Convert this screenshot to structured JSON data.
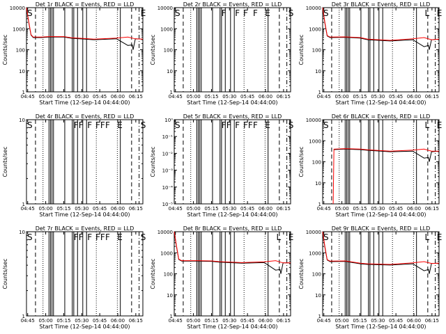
{
  "chart_data": [
    {
      "type": "line",
      "title": "Det 1r BLACK = Events, RED = LLD",
      "ylabel": "Counts/sec",
      "xlabel": "Start Time (12-Sep-14 04:44:00)",
      "x_ticks": [
        "04:45",
        "05:00",
        "05:15",
        "05:30",
        "05:45",
        "06:00",
        "06:15"
      ],
      "y_ticks": [
        "1",
        "10",
        "100",
        "1000",
        "10000"
      ],
      "y_log": true,
      "ylim": [
        1,
        10000
      ],
      "markers": [
        {
          "t": 0,
          "label": "S"
        },
        {
          "t": 151,
          "label": "E"
        }
      ],
      "series": [
        {
          "color": "#000000",
          "points": [
            [
              0,
              10000
            ],
            [
              3,
              2000
            ],
            [
              6,
              500
            ],
            [
              9,
              380
            ],
            [
              20,
              380
            ],
            [
              30,
              400
            ],
            [
              50,
              400
            ],
            [
              60,
              350
            ],
            [
              90,
              300
            ],
            [
              120,
              330
            ],
            [
              135,
              160
            ],
            [
              141,
              170
            ],
            [
              142,
              100
            ],
            [
              145,
              330
            ],
            [
              155,
              320
            ]
          ]
        },
        {
          "color": "#ff0000",
          "points": [
            [
              0,
              10000
            ],
            [
              3,
              2200
            ],
            [
              6,
              520
            ],
            [
              9,
              400
            ],
            [
              20,
              400
            ],
            [
              30,
              420
            ],
            [
              50,
              420
            ],
            [
              60,
              370
            ],
            [
              90,
              320
            ],
            [
              120,
              360
            ],
            [
              135,
              400
            ],
            [
              145,
              330
            ],
            [
              155,
              320
            ]
          ]
        }
      ]
    },
    {
      "type": "line",
      "title": "Det 2r BLACK = Events, RED = LLD",
      "ylabel": "Counts/sec",
      "xlabel": "Start Time (12-Sep-14 04:44:00)",
      "x_ticks": [
        "04:45",
        "05:00",
        "05:15",
        "05:30",
        "05:45",
        "06:00",
        "06:15"
      ],
      "y_ticks": [
        "1",
        "10",
        "100",
        "1000",
        "10000"
      ],
      "y_log": true,
      "ylim": [
        1,
        10000
      ],
      "markers": [
        {
          "t": 0,
          "label": "S"
        },
        {
          "t": 62,
          "label": "F"
        },
        {
          "t": 80,
          "label": "F"
        },
        {
          "t": 91,
          "label": "F"
        },
        {
          "t": 104,
          "label": "F"
        },
        {
          "t": 120,
          "label": "E"
        },
        {
          "t": 151,
          "label": "S"
        }
      ],
      "series": []
    },
    {
      "type": "line",
      "title": "Det 3r BLACK = Events, RED = LLD",
      "ylabel": "Counts/sec",
      "xlabel": "Start Time (12-Sep-14 04:44:00)",
      "x_ticks": [
        "04:45",
        "05:00",
        "05:15",
        "05:30",
        "05:45",
        "06:00",
        "06:15"
      ],
      "y_ticks": [
        "1",
        "10",
        "100",
        "1000",
        "10000"
      ],
      "y_log": true,
      "ylim": [
        1,
        10000
      ],
      "markers": [
        {
          "t": 0,
          "label": "S"
        },
        {
          "t": 135,
          "label": "L"
        },
        {
          "t": 151,
          "label": "E"
        }
      ],
      "series": [
        {
          "color": "#000000",
          "points": [
            [
              0,
              10000
            ],
            [
              3,
              1800
            ],
            [
              6,
              450
            ],
            [
              10,
              380
            ],
            [
              30,
              390
            ],
            [
              50,
              360
            ],
            [
              60,
              300
            ],
            [
              90,
              260
            ],
            [
              120,
              300
            ],
            [
              135,
              140
            ],
            [
              141,
              160
            ],
            [
              142,
              100
            ],
            [
              145,
              300
            ],
            [
              155,
              320
            ]
          ]
        },
        {
          "color": "#ff0000",
          "points": [
            [
              0,
              10000
            ],
            [
              3,
              2000
            ],
            [
              6,
              470
            ],
            [
              10,
              400
            ],
            [
              30,
              410
            ],
            [
              50,
              380
            ],
            [
              60,
              320
            ],
            [
              90,
              280
            ],
            [
              120,
              330
            ],
            [
              135,
              380
            ],
            [
              145,
              300
            ],
            [
              155,
              320
            ]
          ]
        }
      ]
    },
    {
      "type": "line",
      "title": "Det 4r BLACK = Events, RED = LLD",
      "ylabel": "Counts/sec",
      "xlabel": "Start Time (12-Sep-14 04:44:00)",
      "x_ticks": [
        "04:45",
        "05:00",
        "05:15",
        "05:30",
        "05:45",
        "06:00",
        "06:15"
      ],
      "y_ticks": [
        "1",
        "10"
      ],
      "y_log": true,
      "ylim": [
        1,
        10
      ],
      "markers": [
        {
          "t": 0,
          "label": "S"
        },
        {
          "t": 62,
          "label": "FF"
        },
        {
          "t": 80,
          "label": "F"
        },
        {
          "t": 91,
          "label": "FF"
        },
        {
          "t": 104,
          "label": "F"
        },
        {
          "t": 120,
          "label": "E"
        },
        {
          "t": 151,
          "label": "S"
        }
      ],
      "series": []
    },
    {
      "type": "line",
      "title": "Det 5r BLACK = Events, RED = LLD",
      "ylabel": "Counts/sec",
      "xlabel": "Start Time (12-Sep-14 04:44:00)",
      "x_ticks": [
        "04:45",
        "05:00",
        "05:15",
        "05:30",
        "05:45",
        "06:00",
        "06:15"
      ],
      "y_ticks": [
        "10⁻⁵",
        "10⁻⁴",
        "10⁻³",
        "10⁻²",
        "10⁻¹",
        "10⁰"
      ],
      "y_log": true,
      "ylim": [
        1e-05,
        1
      ],
      "markers": [
        {
          "t": 0,
          "label": "S"
        },
        {
          "t": 62,
          "label": "FF"
        },
        {
          "t": 80,
          "label": "F"
        },
        {
          "t": 91,
          "label": "FF"
        },
        {
          "t": 104,
          "label": "F"
        },
        {
          "t": 120,
          "label": "E"
        },
        {
          "t": 151,
          "label": "S"
        }
      ],
      "series": []
    },
    {
      "type": "line",
      "title": "Det 6r BLACK = Events, RED = LLD",
      "ylabel": "Counts/sec",
      "xlabel": "Start Time (12-Sep-14 04:44:00)",
      "x_ticks": [
        "04:45",
        "05:00",
        "05:15",
        "05:30",
        "05:45",
        "06:00",
        "06:15"
      ],
      "y_ticks": [
        "1",
        "10",
        "100",
        "1000",
        "10000"
      ],
      "y_log": true,
      "ylim": [
        1,
        10000
      ],
      "markers": [
        {
          "t": 0,
          "label": "S"
        },
        {
          "t": 135,
          "label": "L"
        },
        {
          "t": 151,
          "label": "E"
        }
      ],
      "series": [
        {
          "color": "#000000",
          "points": [
            [
              15,
              380
            ],
            [
              30,
              400
            ],
            [
              50,
              380
            ],
            [
              60,
              350
            ],
            [
              90,
              300
            ],
            [
              120,
              320
            ],
            [
              135,
              150
            ],
            [
              141,
              160
            ],
            [
              142,
              100
            ],
            [
              145,
              300
            ],
            [
              155,
              320
            ]
          ]
        },
        {
          "color": "#ff0000",
          "points": [
            [
              14,
              1
            ],
            [
              15,
              400
            ],
            [
              30,
              420
            ],
            [
              50,
              400
            ],
            [
              60,
              370
            ],
            [
              90,
              320
            ],
            [
              120,
              360
            ],
            [
              135,
              400
            ],
            [
              145,
              320
            ],
            [
              155,
              320
            ]
          ]
        }
      ]
    },
    {
      "type": "line",
      "title": "Det 7r BLACK = Events, RED = LLD",
      "ylabel": "Counts/sec",
      "xlabel": "Start Time (12-Sep-14 04:44:00)",
      "x_ticks": [
        "04:45",
        "05:00",
        "05:15",
        "05:30",
        "05:45",
        "06:00",
        "06:15"
      ],
      "y_ticks": [
        "1",
        "10"
      ],
      "y_log": true,
      "ylim": [
        1,
        10
      ],
      "markers": [
        {
          "t": 0,
          "label": "S"
        },
        {
          "t": 62,
          "label": "FF"
        },
        {
          "t": 80,
          "label": "F"
        },
        {
          "t": 91,
          "label": "FF"
        },
        {
          "t": 104,
          "label": "F"
        },
        {
          "t": 120,
          "label": "E"
        },
        {
          "t": 151,
          "label": "S"
        }
      ],
      "series": []
    },
    {
      "type": "line",
      "title": "Det 8r BLACK = Events, RED = LLD",
      "ylabel": "Counts/sec",
      "xlabel": "Start Time (12-Sep-14 04:44:00)",
      "x_ticks": [
        "04:45",
        "05:00",
        "05:15",
        "05:30",
        "05:45",
        "06:00",
        "06:15"
      ],
      "y_ticks": [
        "1",
        "10",
        "100",
        "1000",
        "10000"
      ],
      "y_log": true,
      "ylim": [
        1,
        10000
      ],
      "markers": [
        {
          "t": 135,
          "label": "L"
        },
        {
          "t": 151,
          "label": "E"
        }
      ],
      "series": [
        {
          "color": "#000000",
          "points": [
            [
              0,
              10000
            ],
            [
              3,
              2000
            ],
            [
              6,
              480
            ],
            [
              10,
              400
            ],
            [
              30,
              400
            ],
            [
              50,
              390
            ],
            [
              60,
              360
            ],
            [
              90,
              320
            ],
            [
              120,
              340
            ],
            [
              135,
              150
            ],
            [
              141,
              160
            ],
            [
              142,
              100
            ],
            [
              145,
              330
            ],
            [
              155,
              330
            ]
          ]
        },
        {
          "color": "#ff0000",
          "points": [
            [
              0,
              10000
            ],
            [
              3,
              2200
            ],
            [
              6,
              500
            ],
            [
              10,
              420
            ],
            [
              30,
              420
            ],
            [
              50,
              410
            ],
            [
              60,
              380
            ],
            [
              90,
              340
            ],
            [
              120,
              370
            ],
            [
              135,
              420
            ],
            [
              145,
              330
            ],
            [
              155,
              330
            ]
          ]
        }
      ]
    },
    {
      "type": "line",
      "title": "Det 9r BLACK = Events, RED = LLD",
      "ylabel": "Counts/sec",
      "xlabel": "Start Time (12-Sep-14 04:44:00)",
      "x_ticks": [
        "04:45",
        "05:00",
        "05:15",
        "05:30",
        "05:45",
        "06:00",
        "06:15"
      ],
      "y_ticks": [
        "1",
        "10",
        "100",
        "1000",
        "10000"
      ],
      "y_log": true,
      "ylim": [
        1,
        10000
      ],
      "markers": [
        {
          "t": 0,
          "label": "S"
        },
        {
          "t": 135,
          "label": "L"
        },
        {
          "t": 151,
          "label": "E"
        }
      ],
      "series": [
        {
          "color": "#000000",
          "points": [
            [
              0,
              10000
            ],
            [
              3,
              1800
            ],
            [
              6,
              450
            ],
            [
              10,
              380
            ],
            [
              30,
              390
            ],
            [
              50,
              300
            ],
            [
              60,
              280
            ],
            [
              90,
              260
            ],
            [
              120,
              300
            ],
            [
              135,
              140
            ],
            [
              141,
              160
            ],
            [
              142,
              100
            ],
            [
              145,
              310
            ],
            [
              155,
              320
            ]
          ]
        },
        {
          "color": "#ff0000",
          "points": [
            [
              0,
              10000
            ],
            [
              3,
              2000
            ],
            [
              6,
              470
            ],
            [
              10,
              400
            ],
            [
              30,
              410
            ],
            [
              50,
              320
            ],
            [
              60,
              300
            ],
            [
              90,
              280
            ],
            [
              120,
              330
            ],
            [
              135,
              380
            ],
            [
              145,
              310
            ],
            [
              155,
              320
            ]
          ]
        }
      ]
    }
  ]
}
